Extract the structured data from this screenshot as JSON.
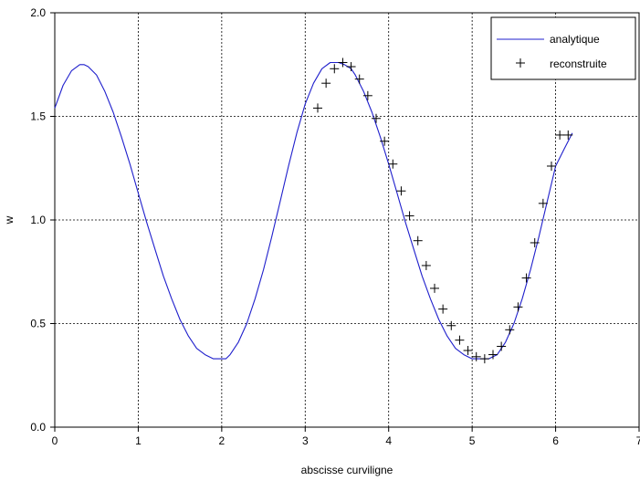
{
  "chart_data": {
    "type": "line",
    "xlabel": "abscisse curviligne",
    "ylabel": "w",
    "xlim": [
      0,
      7
    ],
    "ylim": [
      0.0,
      2.0
    ],
    "xticks": [
      "0",
      "1",
      "2",
      "3",
      "4",
      "5",
      "6",
      "7"
    ],
    "yticks": [
      "0.0",
      "0.5",
      "1.0",
      "1.5",
      "2.0"
    ],
    "grid": true,
    "legend_position": "top-right",
    "series": [
      {
        "name": "analytique",
        "kind": "line",
        "color": "#1f1fcc",
        "x": [
          0.0,
          0.1,
          0.2,
          0.3,
          0.35,
          0.4,
          0.5,
          0.6,
          0.7,
          0.8,
          0.9,
          1.0,
          1.1,
          1.2,
          1.3,
          1.4,
          1.5,
          1.6,
          1.7,
          1.8,
          1.9,
          2.0,
          2.05,
          2.1,
          2.2,
          2.3,
          2.4,
          2.5,
          2.6,
          2.7,
          2.8,
          2.9,
          3.0,
          3.1,
          3.2,
          3.3,
          3.4,
          3.47,
          3.55,
          3.6,
          3.7,
          3.8,
          3.9,
          4.0,
          4.1,
          4.2,
          4.3,
          4.4,
          4.5,
          4.6,
          4.7,
          4.8,
          4.9,
          5.0,
          5.1,
          5.2,
          5.25,
          5.3,
          5.4,
          5.5,
          5.6,
          5.7,
          5.8,
          5.9,
          6.0,
          6.1,
          6.2
        ],
        "y": [
          1.54,
          1.65,
          1.72,
          1.75,
          1.75,
          1.74,
          1.7,
          1.62,
          1.52,
          1.4,
          1.27,
          1.13,
          0.99,
          0.86,
          0.73,
          0.62,
          0.52,
          0.44,
          0.38,
          0.35,
          0.33,
          0.33,
          0.33,
          0.35,
          0.41,
          0.5,
          0.62,
          0.76,
          0.92,
          1.09,
          1.26,
          1.42,
          1.56,
          1.66,
          1.73,
          1.76,
          1.76,
          1.75,
          1.73,
          1.7,
          1.62,
          1.52,
          1.4,
          1.27,
          1.13,
          0.99,
          0.86,
          0.73,
          0.62,
          0.52,
          0.44,
          0.38,
          0.35,
          0.33,
          0.33,
          0.33,
          0.34,
          0.35,
          0.41,
          0.5,
          0.62,
          0.76,
          0.92,
          1.09,
          1.26,
          1.34,
          1.42
        ]
      },
      {
        "name": "reconstruite",
        "kind": "marker",
        "marker": "plus",
        "color": "#000000",
        "x": [
          3.15,
          3.25,
          3.35,
          3.45,
          3.55,
          3.65,
          3.75,
          3.85,
          3.95,
          4.05,
          4.15,
          4.25,
          4.35,
          4.45,
          4.55,
          4.65,
          4.75,
          4.85,
          4.95,
          5.05,
          5.15,
          5.25,
          5.35,
          5.45,
          5.55,
          5.65,
          5.75,
          5.85,
          5.95,
          6.05,
          6.15
        ],
        "y": [
          1.54,
          1.66,
          1.73,
          1.76,
          1.74,
          1.68,
          1.6,
          1.49,
          1.38,
          1.27,
          1.14,
          1.02,
          0.9,
          0.78,
          0.67,
          0.57,
          0.49,
          0.42,
          0.37,
          0.34,
          0.33,
          0.35,
          0.39,
          0.47,
          0.58,
          0.72,
          0.89,
          1.08,
          1.26,
          1.41,
          1.41
        ]
      }
    ]
  }
}
